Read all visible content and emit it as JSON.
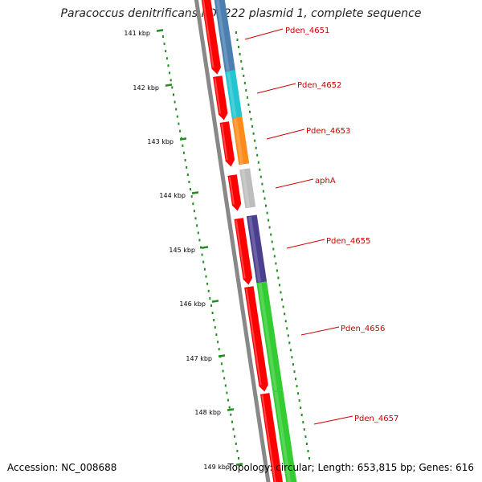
{
  "title": "Paracoccus denitrificans PD1222 plasmid 1, complete sequence",
  "accession": "Accession: NC_008688",
  "summary": "Topology: circular; Length: 653,815 bp; Genes: 616",
  "colors": {
    "backbone": "#888888",
    "cds": "#ff0000",
    "scale": "#228B22",
    "label": "#cc0000"
  },
  "ticks": [
    {
      "label": "141 kbp"
    },
    {
      "label": "142 kbp"
    },
    {
      "label": "143 kbp"
    },
    {
      "label": "144 kbp"
    },
    {
      "label": "145 kbp"
    },
    {
      "label": "146 kbp"
    },
    {
      "label": "147 kbp"
    },
    {
      "label": "148 kbp"
    },
    {
      "label": "149 kbp"
    }
  ],
  "genes": [
    {
      "label": "Pden_4651",
      "color": "#4a7fb0"
    },
    {
      "label": "Pden_4652",
      "color": "#22c5d0"
    },
    {
      "label": "Pden_4653",
      "color": "#ff8c1a"
    },
    {
      "label": "aphA",
      "color": "#bdbdbd"
    },
    {
      "label": "Pden_4655",
      "color": "#4b3f8f"
    },
    {
      "label": "Pden_4656",
      "color": "#33cc33"
    },
    {
      "label": "Pden_4657",
      "color": "#33cc33"
    }
  ]
}
